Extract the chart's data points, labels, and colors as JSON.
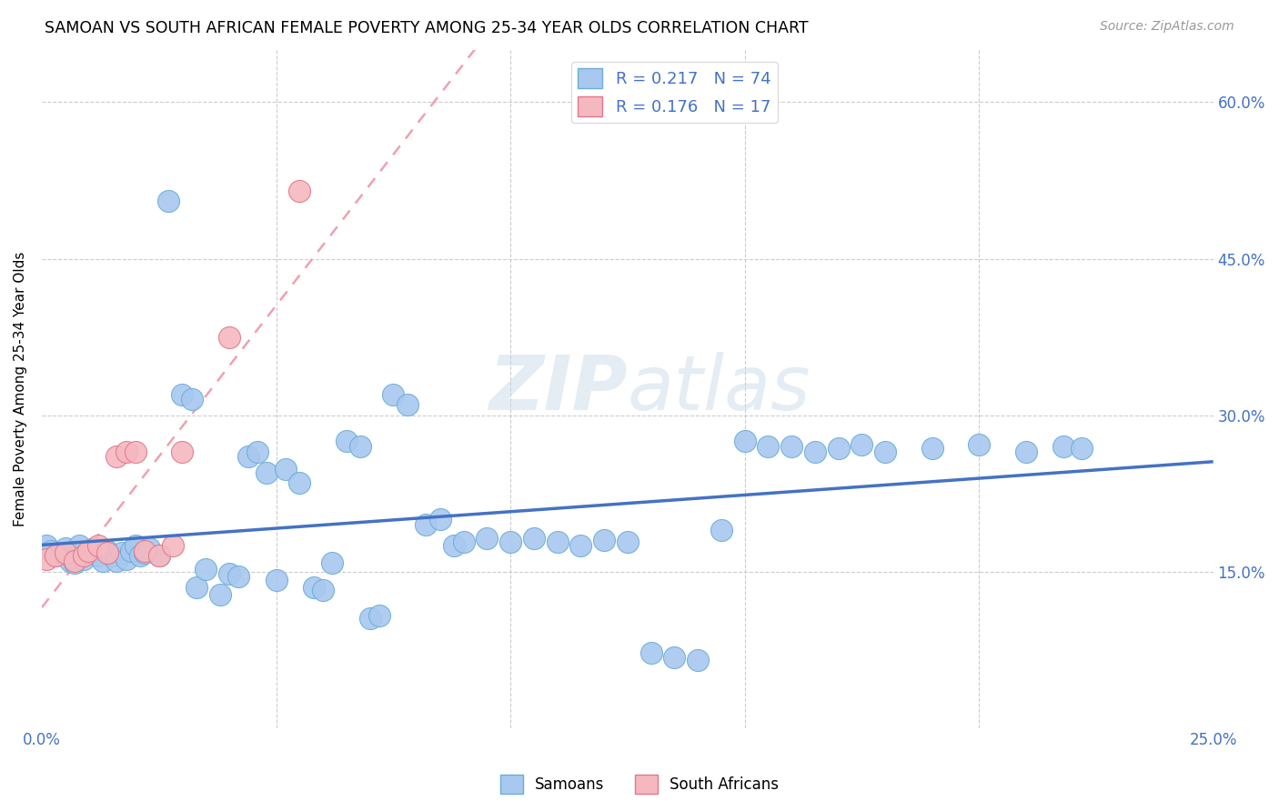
{
  "title": "SAMOAN VS SOUTH AFRICAN FEMALE POVERTY AMONG 25-34 YEAR OLDS CORRELATION CHART",
  "source": "Source: ZipAtlas.com",
  "ylabel": "Female Poverty Among 25-34 Year Olds",
  "watermark": "ZIPatlas",
  "xlim": [
    0.0,
    0.25
  ],
  "ylim": [
    0.0,
    0.65
  ],
  "samoans_color": "#A8C8F0",
  "south_africans_color": "#F5B8C0",
  "trend_samoan_color": "#4472C4",
  "trend_sa_color": "#F0A0B0",
  "R_samoan": 0.217,
  "N_samoan": 74,
  "R_sa": 0.176,
  "N_sa": 17,
  "samoans_x": [
    0.001,
    0.002,
    0.003,
    0.004,
    0.005,
    0.006,
    0.007,
    0.008,
    0.009,
    0.01,
    0.011,
    0.012,
    0.013,
    0.014,
    0.015,
    0.016,
    0.017,
    0.018,
    0.019,
    0.02,
    0.021,
    0.022,
    0.023,
    0.025,
    0.027,
    0.03,
    0.032,
    0.033,
    0.035,
    0.038,
    0.04,
    0.042,
    0.044,
    0.046,
    0.048,
    0.05,
    0.052,
    0.055,
    0.058,
    0.06,
    0.062,
    0.065,
    0.068,
    0.07,
    0.072,
    0.075,
    0.078,
    0.082,
    0.085,
    0.088,
    0.09,
    0.095,
    0.1,
    0.105,
    0.11,
    0.115,
    0.12,
    0.125,
    0.13,
    0.135,
    0.14,
    0.145,
    0.15,
    0.155,
    0.16,
    0.165,
    0.17,
    0.175,
    0.18,
    0.19,
    0.2,
    0.21,
    0.218,
    0.222
  ],
  "samoans_y": [
    0.175,
    0.17,
    0.165,
    0.168,
    0.172,
    0.16,
    0.158,
    0.175,
    0.162,
    0.168,
    0.172,
    0.165,
    0.16,
    0.17,
    0.165,
    0.16,
    0.168,
    0.162,
    0.17,
    0.175,
    0.165,
    0.168,
    0.172,
    0.165,
    0.505,
    0.32,
    0.315,
    0.135,
    0.152,
    0.128,
    0.148,
    0.145,
    0.26,
    0.265,
    0.245,
    0.142,
    0.248,
    0.235,
    0.135,
    0.132,
    0.158,
    0.275,
    0.27,
    0.105,
    0.108,
    0.32,
    0.31,
    0.195,
    0.2,
    0.175,
    0.178,
    0.182,
    0.178,
    0.182,
    0.178,
    0.175,
    0.18,
    0.178,
    0.072,
    0.068,
    0.065,
    0.19,
    0.275,
    0.27,
    0.27,
    0.265,
    0.268,
    0.272,
    0.265,
    0.268,
    0.272,
    0.265,
    0.27,
    0.268
  ],
  "south_africans_x": [
    0.001,
    0.003,
    0.005,
    0.007,
    0.009,
    0.01,
    0.012,
    0.014,
    0.016,
    0.018,
    0.02,
    0.022,
    0.025,
    0.028,
    0.03,
    0.04,
    0.055
  ],
  "south_africans_y": [
    0.162,
    0.165,
    0.168,
    0.16,
    0.165,
    0.17,
    0.175,
    0.168,
    0.26,
    0.265,
    0.265,
    0.17,
    0.165,
    0.175,
    0.265,
    0.375,
    0.515
  ]
}
